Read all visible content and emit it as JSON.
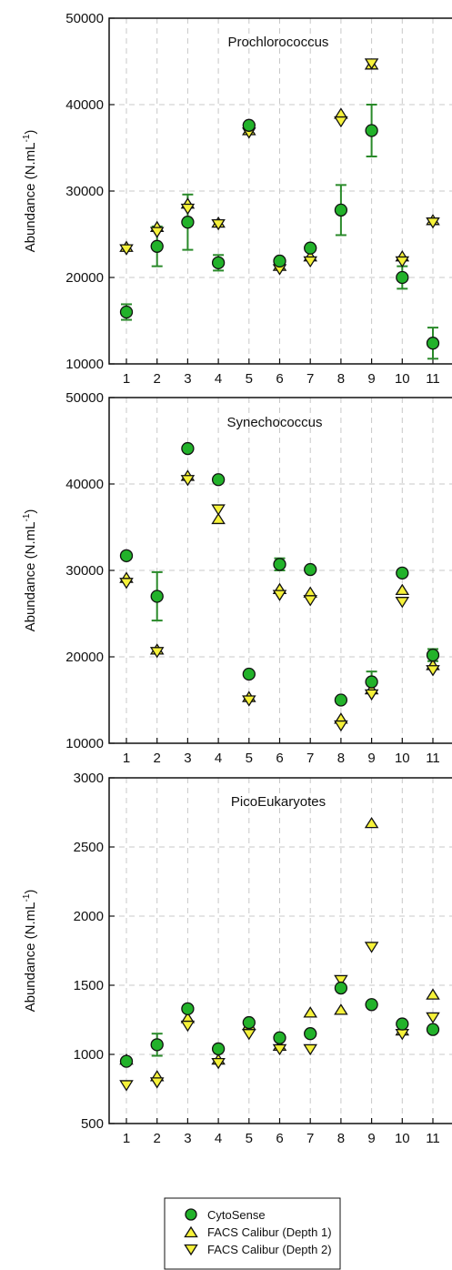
{
  "chart_data": [
    {
      "type": "scatter",
      "title": "Prochlorococcus",
      "ylabel": "Abundance (N.mL",
      "ylabel_sup": "-1",
      "ylabel_close": ")",
      "ylim": [
        10000,
        50000
      ],
      "yticks": [
        "10000",
        "20000",
        "30000",
        "40000",
        "50000"
      ],
      "x": [
        "1",
        "2",
        "3",
        "4",
        "5",
        "6",
        "7",
        "8",
        "9",
        "10",
        "11"
      ],
      "grid": true,
      "series": [
        {
          "name": "CytoSense",
          "values": [
            16000,
            23600,
            26400,
            21700,
            37600,
            21900,
            23400,
            27800,
            37000,
            20000,
            12400
          ],
          "err": [
            900,
            2300,
            3200,
            900,
            0,
            0,
            0,
            2900,
            3000,
            1300,
            1800
          ]
        },
        {
          "name": "FACS Calibur (Depth 1)",
          "values": [
            23500,
            25800,
            28500,
            26300,
            37000,
            21300,
            22400,
            38900,
            44600,
            22400,
            26600
          ]
        },
        {
          "name": "FACS Calibur (Depth 2)",
          "values": [
            23300,
            25300,
            28000,
            26200,
            36800,
            21000,
            21900,
            38100,
            44800,
            21900,
            26400
          ]
        }
      ]
    },
    {
      "type": "scatter",
      "title": "Synechococcus",
      "ylabel": "Abundance (N.mL",
      "ylabel_sup": "-1",
      "ylabel_close": ")",
      "ylim": [
        10000,
        50000
      ],
      "yticks": [
        "10000",
        "20000",
        "30000",
        "40000",
        "50000"
      ],
      "x": [
        "1",
        "2",
        "3",
        "4",
        "5",
        "6",
        "7",
        "8",
        "9",
        "10",
        "11"
      ],
      "grid": true,
      "series": [
        {
          "name": "CytoSense",
          "values": [
            31700,
            27000,
            44100,
            40500,
            18000,
            30700,
            30100,
            15000,
            17100,
            29700,
            20200
          ],
          "err": [
            0,
            2800,
            0,
            0,
            0,
            700,
            0,
            0,
            1200,
            0,
            700
          ]
        },
        {
          "name": "FACS Calibur (Depth 1)",
          "values": [
            29100,
            20800,
            40900,
            35900,
            15300,
            27800,
            27400,
            12800,
            16200,
            27700,
            19000
          ]
        },
        {
          "name": "FACS Calibur (Depth 2)",
          "values": [
            28600,
            20600,
            40500,
            37100,
            15000,
            27200,
            26600,
            12100,
            15700,
            26400,
            18500
          ]
        }
      ]
    },
    {
      "type": "scatter",
      "title": "PicoEukaryotes",
      "ylabel": "Abundance (N.mL",
      "ylabel_sup": "-1",
      "ylabel_close": ")",
      "ylim": [
        500,
        3000
      ],
      "yticks": [
        "500",
        "1000",
        "1500",
        "2000",
        "2500",
        "3000"
      ],
      "x": [
        "1",
        "2",
        "3",
        "4",
        "5",
        "6",
        "7",
        "8",
        "9",
        "10",
        "11"
      ],
      "grid": true,
      "series": [
        {
          "name": "CytoSense",
          "values": [
            950,
            1070,
            1330,
            1040,
            1230,
            1120,
            1150,
            1480,
            1360,
            1220,
            1180
          ],
          "err": [
            0,
            80,
            0,
            0,
            0,
            0,
            0,
            0,
            0,
            0,
            0
          ]
        },
        {
          "name": "FACS Calibur (Depth 1)",
          "values": [
            960,
            840,
            1260,
            960,
            1210,
            1060,
            1300,
            1320,
            2670,
            1170,
            1430
          ]
        },
        {
          "name": "FACS Calibur (Depth 2)",
          "values": [
            780,
            800,
            1210,
            940,
            1150,
            1040,
            1040,
            1540,
            1780,
            1150,
            1270
          ]
        }
      ]
    }
  ],
  "legend": {
    "items": [
      {
        "label": "CytoSense",
        "marker": "circle"
      },
      {
        "label": "FACS Calibur (Depth 1)",
        "marker": "triangle-up"
      },
      {
        "label": "FACS Calibur (Depth 2)",
        "marker": "triangle-down"
      }
    ]
  },
  "colors": {
    "circle_fill": "#22b22a",
    "errorbar": "#2a8a2a",
    "triangle_fill": "#f6f23a",
    "marker_stroke": "#111111",
    "grid": "#c8c8c8"
  }
}
